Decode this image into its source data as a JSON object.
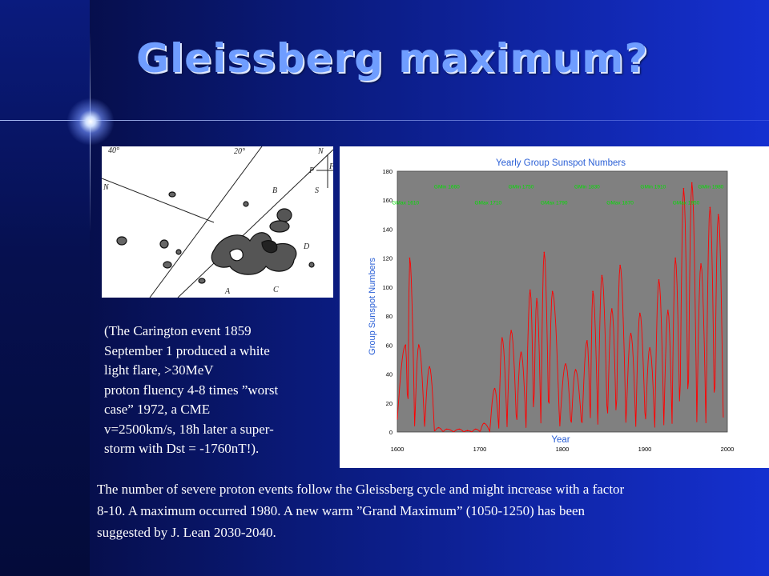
{
  "slide": {
    "title": "Gleissberg maximum?",
    "caption_lines": [
      "(The Carington event 1859",
      "September 1 produced a white",
      "light flare, >30MeV",
      "proton fluency 4-8 times ”worst",
      "case” 1972, a CME",
      "v=2500km/s, 18h later a super-",
      "storm with Dst = -1760nT!)."
    ],
    "footer_lines": [
      "The number of severe proton events follow the Gleissberg cycle and might increase with a factor",
      "8-10. A maximum occurred 1980. A new warm ”Grand Maximum” (1050-1250) has been",
      "suggested by J. Lean 2030-2040."
    ]
  },
  "sketch": {
    "labels": {
      "deg_left": "40°",
      "deg_mid": "20°",
      "N_top": "N",
      "P": "P",
      "F": "F",
      "S": "S",
      "N_left": "N",
      "B": "B",
      "D": "D",
      "A": "A",
      "C": "C"
    }
  },
  "chart_data": {
    "type": "line",
    "title": "Yearly Group Sunspot Numbers",
    "xlabel": "Year",
    "ylabel": "Group Sunspot Numbers",
    "xlim": [
      1600,
      2000
    ],
    "ylim": [
      0,
      180
    ],
    "x_ticks": [
      1600,
      1700,
      1800,
      1900,
      2000
    ],
    "y_ticks": [
      0,
      20,
      40,
      60,
      80,
      100,
      120,
      140,
      160,
      180
    ],
    "grid": false,
    "colors": {
      "line": "#ff0000",
      "plot_bg": "#808080",
      "label": "#2a5fd6",
      "annotation": "#00e000"
    },
    "annotations": [
      {
        "label": "GMin 1660",
        "x": 1660,
        "y": 168
      },
      {
        "label": "GMin 1750",
        "x": 1750,
        "y": 168
      },
      {
        "label": "GMin 1830",
        "x": 1830,
        "y": 168
      },
      {
        "label": "GMin 1910",
        "x": 1910,
        "y": 168
      },
      {
        "label": "GMin 1980",
        "x": 1980,
        "y": 168
      },
      {
        "label": "GMax 1610",
        "x": 1610,
        "y": 157
      },
      {
        "label": "GMax 1710",
        "x": 1710,
        "y": 157
      },
      {
        "label": "GMax 1790",
        "x": 1790,
        "y": 157
      },
      {
        "label": "GMax 1870",
        "x": 1870,
        "y": 157
      },
      {
        "label": "GMax 1950",
        "x": 1950,
        "y": 157
      }
    ],
    "cycle_maxima": [
      {
        "x": 1610,
        "y": 60
      },
      {
        "x": 1615,
        "y": 120
      },
      {
        "x": 1626,
        "y": 60
      },
      {
        "x": 1639,
        "y": 45
      },
      {
        "x": 1650,
        "y": 3
      },
      {
        "x": 1660,
        "y": 2
      },
      {
        "x": 1675,
        "y": 2
      },
      {
        "x": 1685,
        "y": 1
      },
      {
        "x": 1695,
        "y": 2
      },
      {
        "x": 1705,
        "y": 6
      },
      {
        "x": 1718,
        "y": 30
      },
      {
        "x": 1727,
        "y": 65
      },
      {
        "x": 1738,
        "y": 70
      },
      {
        "x": 1750,
        "y": 55
      },
      {
        "x": 1761,
        "y": 98
      },
      {
        "x": 1769,
        "y": 92
      },
      {
        "x": 1778,
        "y": 124
      },
      {
        "x": 1788,
        "y": 97
      },
      {
        "x": 1804,
        "y": 47
      },
      {
        "x": 1816,
        "y": 43
      },
      {
        "x": 1830,
        "y": 63
      },
      {
        "x": 1837,
        "y": 97
      },
      {
        "x": 1848,
        "y": 108
      },
      {
        "x": 1860,
        "y": 85
      },
      {
        "x": 1870,
        "y": 115
      },
      {
        "x": 1883,
        "y": 68
      },
      {
        "x": 1894,
        "y": 82
      },
      {
        "x": 1906,
        "y": 58
      },
      {
        "x": 1917,
        "y": 105
      },
      {
        "x": 1928,
        "y": 84
      },
      {
        "x": 1937,
        "y": 120
      },
      {
        "x": 1947,
        "y": 168
      },
      {
        "x": 1957,
        "y": 172
      },
      {
        "x": 1968,
        "y": 116
      },
      {
        "x": 1979,
        "y": 155
      },
      {
        "x": 1989,
        "y": 150
      }
    ]
  }
}
